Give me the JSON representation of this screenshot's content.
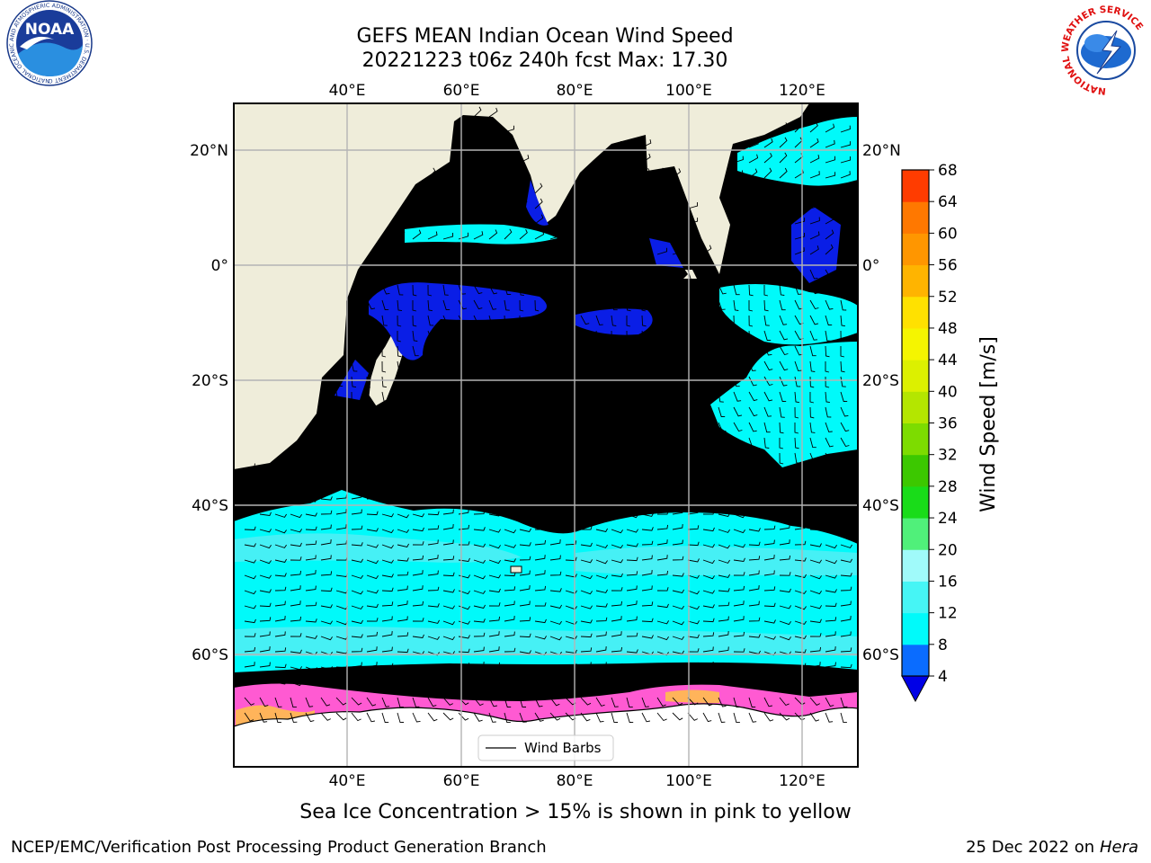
{
  "title": {
    "line1": "GEFS MEAN Indian Ocean Wind Speed",
    "line2": "20221223 t06z 240h fcst   Max: 17.30"
  },
  "caption": "Sea Ice Concentration > 15% is shown in pink to yellow",
  "footer": {
    "branch": "NCEP/EMC/Verification Post Processing Product Generation Branch",
    "date": "25 Dec 2022 on",
    "host": "Hera"
  },
  "map": {
    "lon_ticks": [
      "40°E",
      "60°E",
      "80°E",
      "100°E",
      "120°E"
    ],
    "lat_ticks": [
      "20°N",
      "0°",
      "20°S",
      "40°S",
      "60°S"
    ],
    "legend_label": "Wind Barbs",
    "colors": {
      "land": "#efedda",
      "ocean_4_8": "#1e78ff",
      "ocean_0_4": "#0a1ee6",
      "ocean_8_12": "#00fafa",
      "ocean_12_16": "#46f0f5",
      "sea_ice_pink": "#ff5ad2",
      "sea_ice_orange": "#ffb45a"
    }
  },
  "colorbar": {
    "label": "Wind Speed [m/s]",
    "ticks": [
      "4",
      "8",
      "12",
      "16",
      "20",
      "24",
      "28",
      "32",
      "36",
      "40",
      "44",
      "48",
      "52",
      "56",
      "60",
      "64",
      "68"
    ],
    "colors": [
      "#0a6cff",
      "#00fafa",
      "#46f5f5",
      "#a0fafa",
      "#50f07a",
      "#19dc19",
      "#3cc800",
      "#7ddc00",
      "#b4e600",
      "#dcf000",
      "#f5f500",
      "#ffe100",
      "#ffb400",
      "#ff9600",
      "#ff7800",
      "#ff3c00",
      "#ff0000"
    ],
    "underflow_color": "#0000e6"
  },
  "logos": {
    "noaa_text": "NOAA",
    "noaa_ring": "NATIONAL OCEANIC AND ATMOSPHERIC ADMINISTRATION · U.S. DEPARTMENT OF COMMERCE",
    "nws_ring": "NATIONAL WEATHER SERVICE"
  }
}
